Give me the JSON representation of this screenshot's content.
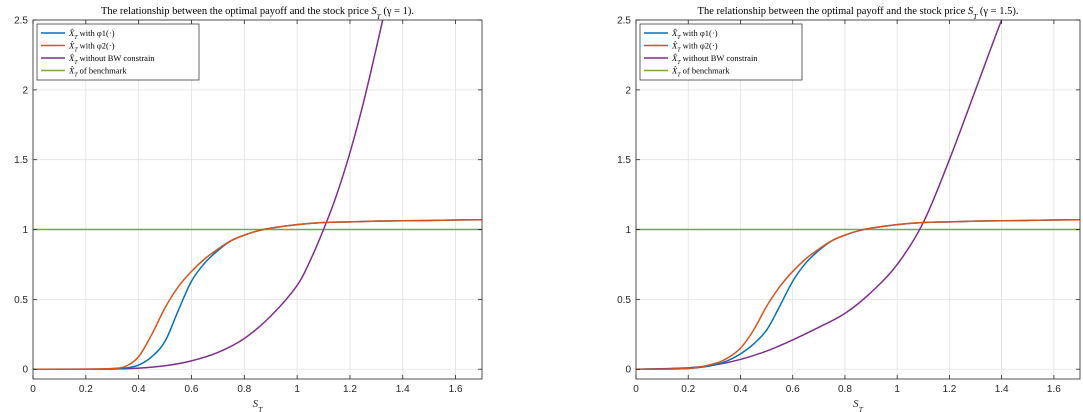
{
  "chart_data": [
    {
      "type": "line",
      "title": "The relationship between the optimal payoff and the stock price S_T (γ = 1).",
      "xlabel": "S_T",
      "ylabel": "",
      "xlim": [
        0,
        1.7
      ],
      "ylim": [
        -0.07,
        2.5
      ],
      "xticks": [
        "0",
        "0.2",
        "0.4",
        "0.6",
        "0.8",
        "1",
        "1.2",
        "1.4",
        "1.6"
      ],
      "yticks": [
        "0",
        "0.5",
        "1",
        "1.5",
        "2",
        "2.5"
      ],
      "grid": true,
      "legend_position": "top-left",
      "series": [
        {
          "name": "X̂_T with φ1(·)",
          "color": "#0072BD",
          "x": [
            0,
            0.2,
            0.3,
            0.35,
            0.4,
            0.45,
            0.5,
            0.55,
            0.6,
            0.65,
            0.7,
            0.75,
            0.8,
            0.85,
            0.9,
            1.0,
            1.1,
            1.2,
            1.3,
            1.4,
            1.5,
            1.6,
            1.7
          ],
          "y": [
            0,
            0,
            0.002,
            0.008,
            0.03,
            0.09,
            0.2,
            0.42,
            0.63,
            0.76,
            0.85,
            0.92,
            0.96,
            0.99,
            1.01,
            1.035,
            1.05,
            1.055,
            1.06,
            1.063,
            1.065,
            1.068,
            1.07
          ]
        },
        {
          "name": "X̂_T with φ2(·)",
          "color": "#D95319",
          "x": [
            0,
            0.2,
            0.3,
            0.35,
            0.4,
            0.45,
            0.5,
            0.55,
            0.6,
            0.65,
            0.7,
            0.75,
            0.8,
            0.85,
            0.9,
            1.0,
            1.1,
            1.2,
            1.3,
            1.4,
            1.5,
            1.6,
            1.7
          ],
          "y": [
            0,
            0,
            0.005,
            0.02,
            0.09,
            0.25,
            0.44,
            0.59,
            0.7,
            0.79,
            0.86,
            0.92,
            0.96,
            0.99,
            1.01,
            1.035,
            1.05,
            1.055,
            1.06,
            1.063,
            1.065,
            1.068,
            1.07
          ]
        },
        {
          "name": "X̂_T without BW constrain",
          "color": "#7E2F8E",
          "x": [
            0,
            0.3,
            0.4,
            0.5,
            0.6,
            0.7,
            0.8,
            0.9,
            1.0,
            1.05,
            1.1,
            1.15,
            1.2,
            1.25,
            1.3,
            1.33
          ],
          "y": [
            0,
            0.002,
            0.008,
            0.025,
            0.06,
            0.12,
            0.22,
            0.38,
            0.6,
            0.78,
            1.0,
            1.25,
            1.55,
            1.9,
            2.3,
            2.55
          ]
        },
        {
          "name": "X̂_T of benchmark",
          "color": "#77AC30",
          "x": [
            0,
            1.7
          ],
          "y": [
            1,
            1
          ]
        }
      ]
    },
    {
      "type": "line",
      "title": "The relationship between the optimal payoff and the stock price S_T (γ = 1.5).",
      "xlabel": "S_T",
      "ylabel": "",
      "xlim": [
        0,
        1.7
      ],
      "ylim": [
        -0.07,
        2.5
      ],
      "xticks": [
        "0",
        "0.2",
        "0.4",
        "0.6",
        "0.8",
        "1",
        "1.2",
        "1.4",
        "1.6"
      ],
      "yticks": [
        "0",
        "0.5",
        "1",
        "1.5",
        "2",
        "2.5"
      ],
      "grid": true,
      "legend_position": "top-left",
      "series": [
        {
          "name": "X̂_T with φ1(·)",
          "color": "#0072BD",
          "x": [
            0,
            0.2,
            0.3,
            0.35,
            0.4,
            0.45,
            0.5,
            0.55,
            0.6,
            0.65,
            0.7,
            0.75,
            0.8,
            0.85,
            0.9,
            1.0,
            1.1,
            1.2,
            1.3,
            1.4,
            1.5,
            1.6,
            1.7
          ],
          "y": [
            0,
            0.005,
            0.03,
            0.06,
            0.11,
            0.18,
            0.28,
            0.45,
            0.63,
            0.76,
            0.85,
            0.92,
            0.96,
            0.99,
            1.01,
            1.035,
            1.05,
            1.055,
            1.06,
            1.063,
            1.065,
            1.068,
            1.07
          ]
        },
        {
          "name": "X̂_T with φ2(·)",
          "color": "#D95319",
          "x": [
            0,
            0.2,
            0.3,
            0.35,
            0.4,
            0.45,
            0.5,
            0.55,
            0.6,
            0.65,
            0.7,
            0.75,
            0.8,
            0.85,
            0.9,
            1.0,
            1.1,
            1.2,
            1.3,
            1.4,
            1.5,
            1.6,
            1.7
          ],
          "y": [
            0,
            0.005,
            0.04,
            0.08,
            0.15,
            0.28,
            0.45,
            0.59,
            0.7,
            0.79,
            0.86,
            0.92,
            0.96,
            0.99,
            1.01,
            1.035,
            1.05,
            1.055,
            1.06,
            1.063,
            1.065,
            1.068,
            1.07
          ]
        },
        {
          "name": "X̂_T without BW constrain",
          "color": "#7E2F8E",
          "x": [
            0,
            0.2,
            0.3,
            0.4,
            0.5,
            0.6,
            0.7,
            0.8,
            0.9,
            1.0,
            1.1,
            1.2,
            1.3,
            1.4,
            1.42
          ],
          "y": [
            0,
            0.01,
            0.03,
            0.07,
            0.13,
            0.21,
            0.3,
            0.4,
            0.55,
            0.75,
            1.05,
            1.5,
            2.0,
            2.5,
            2.55
          ]
        },
        {
          "name": "X̂_T of benchmark",
          "color": "#77AC30",
          "x": [
            0,
            1.7
          ],
          "y": [
            1,
            1
          ]
        }
      ]
    }
  ]
}
